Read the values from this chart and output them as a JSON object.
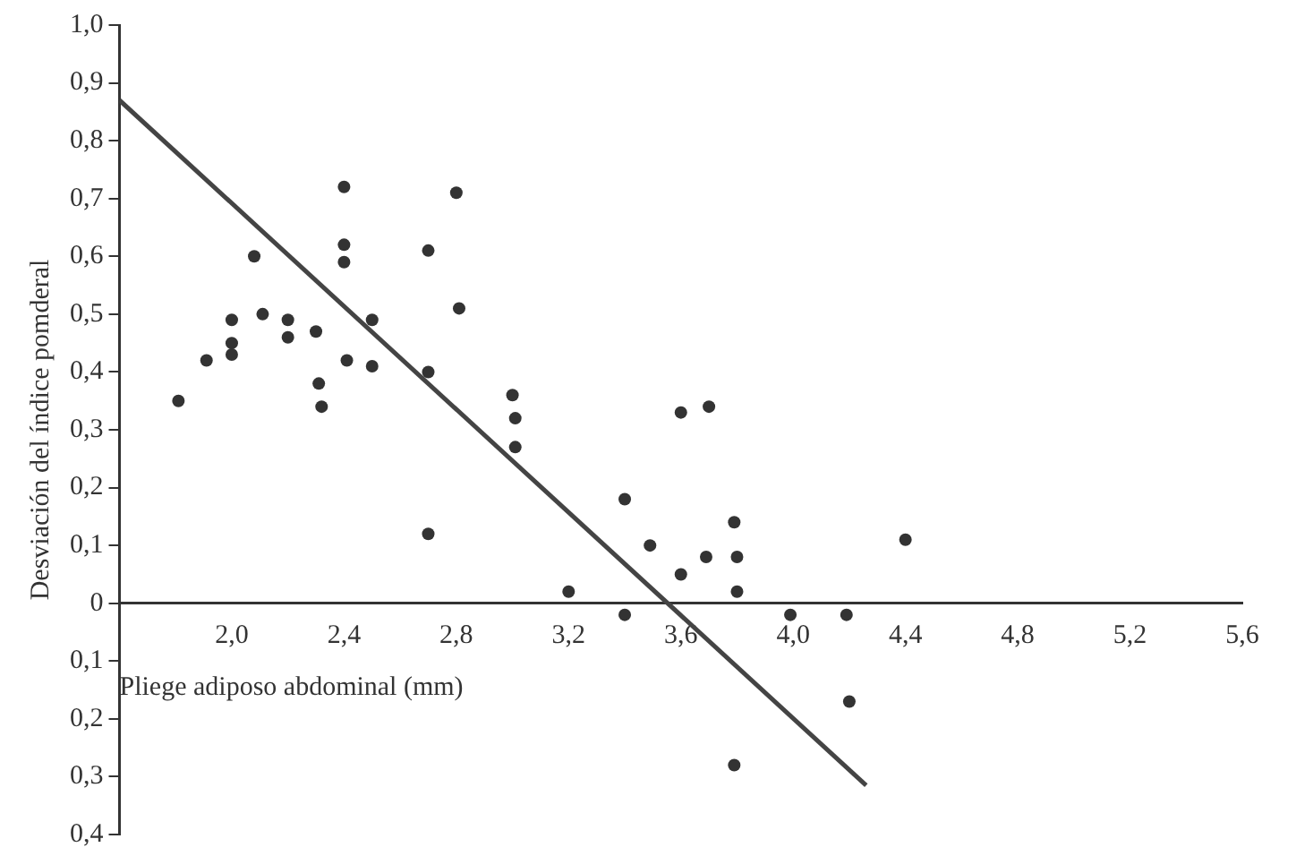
{
  "chart_data": {
    "type": "scatter",
    "xlabel": "Pliege adiposo abdominal (mm)",
    "ylabel": "Desviación del índice pomderal",
    "xlim": [
      1.6,
      5.6
    ],
    "xticks": [
      {
        "value": 2.0,
        "label": "2,0"
      },
      {
        "value": 2.4,
        "label": "2,4"
      },
      {
        "value": 2.8,
        "label": "2,8"
      },
      {
        "value": 3.2,
        "label": "3,2"
      },
      {
        "value": 3.6,
        "label": "3,6"
      },
      {
        "value": 4.0,
        "label": "4,0"
      },
      {
        "value": 4.4,
        "label": "4,4"
      },
      {
        "value": 4.8,
        "label": "4,8"
      },
      {
        "value": 5.2,
        "label": "5,2"
      },
      {
        "value": 5.6,
        "label": "5,6"
      }
    ],
    "ylim": [
      -0.4,
      1.0
    ],
    "yticks": [
      {
        "value": 1.0,
        "label": "1,0"
      },
      {
        "value": 0.9,
        "label": "0,9"
      },
      {
        "value": 0.8,
        "label": "0,8"
      },
      {
        "value": 0.7,
        "label": "0,7"
      },
      {
        "value": 0.6,
        "label": "0,6"
      },
      {
        "value": 0.5,
        "label": "0,5"
      },
      {
        "value": 0.4,
        "label": "0,4"
      },
      {
        "value": 0.3,
        "label": "0,3"
      },
      {
        "value": 0.2,
        "label": "0,2"
      },
      {
        "value": 0.1,
        "label": "0,1"
      },
      0,
      {
        "value": -0.1,
        "label": "0,1"
      },
      {
        "value": -0.2,
        "label": "0,2"
      },
      {
        "value": -0.3,
        "label": "0,3"
      },
      {
        "value": -0.4,
        "label": "0,4"
      }
    ],
    "grid": false,
    "legend": false,
    "marker": "circle",
    "series": [
      {
        "color": "#333333",
        "x": [
          1.81,
          1.91,
          2.0,
          2.0,
          2.0,
          2.08,
          2.11,
          2.2,
          2.2,
          2.3,
          2.31,
          2.32,
          2.4,
          2.4,
          2.4,
          2.41,
          2.5,
          2.5,
          2.7,
          2.7,
          2.7,
          2.8,
          2.81,
          3.0,
          3.01,
          3.01,
          3.2,
          3.4,
          3.4,
          3.49,
          3.6,
          3.6,
          3.7,
          3.69,
          3.79,
          3.8,
          3.8,
          3.79,
          3.99,
          4.19,
          4.2,
          4.4
        ],
        "values": [
          0.35,
          0.42,
          0.49,
          0.45,
          0.43,
          0.6,
          0.5,
          0.49,
          0.46,
          0.47,
          0.38,
          0.34,
          0.72,
          0.62,
          0.59,
          0.42,
          0.49,
          0.41,
          0.61,
          0.4,
          0.12,
          0.71,
          0.51,
          0.36,
          0.32,
          0.27,
          0.02,
          0.18,
          -0.02,
          0.1,
          0.33,
          0.05,
          0.34,
          0.08,
          0.14,
          0.08,
          0.02,
          -0.28,
          -0.02,
          -0.02,
          -0.17,
          0.11
        ]
      },
      {
        "type": "line",
        "color": "#444444",
        "marker": "none",
        "line_style": "solid",
        "x": [
          1.6,
          4.26
        ],
        "values": [
          0.87,
          -0.315
        ]
      }
    ]
  }
}
